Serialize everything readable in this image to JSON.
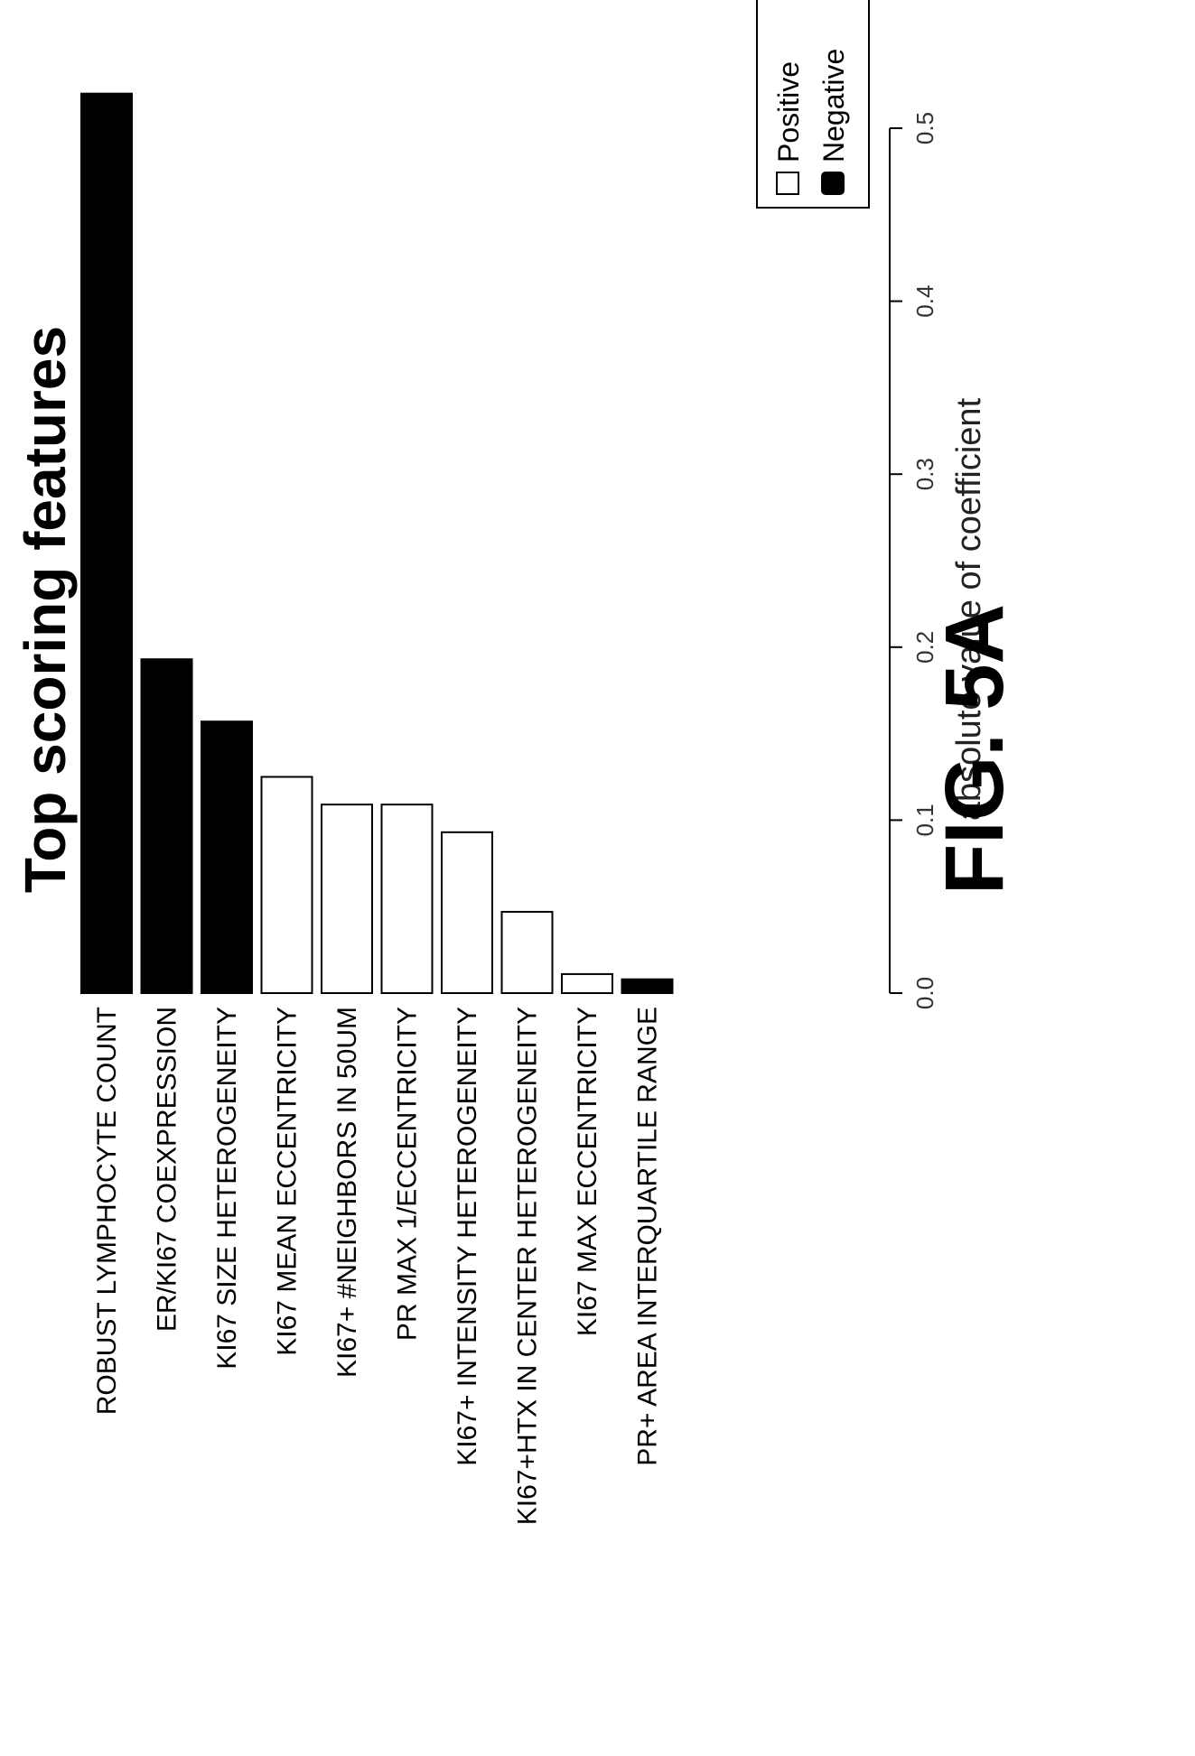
{
  "chart_data": {
    "type": "bar",
    "orientation": "horizontal, figure rotated 90° counter-clockwise",
    "title": "Top scoring features",
    "xlabel": "absolute value of coefficient",
    "xlim": [
      0,
      0.5
    ],
    "ticks": [
      0.0,
      0.1,
      0.2,
      0.3,
      0.4,
      0.5
    ],
    "tick_labels": [
      "0.0",
      "0.1",
      "0.2",
      "0.3",
      "0.4",
      "0.5"
    ],
    "categories": [
      "ROBUST LYMPHOCYTE COUNT",
      "ER/KI67 COEXPRESSION",
      "KI67 SIZE HETEROGENEITY",
      "KI67 MEAN ECCENTRICITY",
      "KI67+ #NEIGHBORS IN 50UM",
      "PR MAX 1/ECCENTRICITY",
      "KI67+ INTENSITY HETEROGENEITY",
      "KI67+HTX IN CENTER HETEROGENEITY",
      "KI67 MAX ECCENTRICITY",
      "PR+ AREA INTERQUARTILE RANGE"
    ],
    "values": [
      0.52,
      0.193,
      0.157,
      0.125,
      0.109,
      0.109,
      0.093,
      0.047,
      0.011,
      0.008
    ],
    "signs": [
      "Negative",
      "Negative",
      "Negative",
      "Positive",
      "Positive",
      "Positive",
      "Positive",
      "Positive",
      "Positive",
      "Negative"
    ],
    "legend": {
      "position": "top-right",
      "entries": [
        {
          "label": "Positive",
          "color": "#ffffff"
        },
        {
          "label": "Negative",
          "color": "#000000"
        }
      ]
    },
    "colors": {
      "Positive": "#ffffff",
      "Negative": "#000000"
    },
    "grid": false
  },
  "figure_label": "FIG. 5A"
}
